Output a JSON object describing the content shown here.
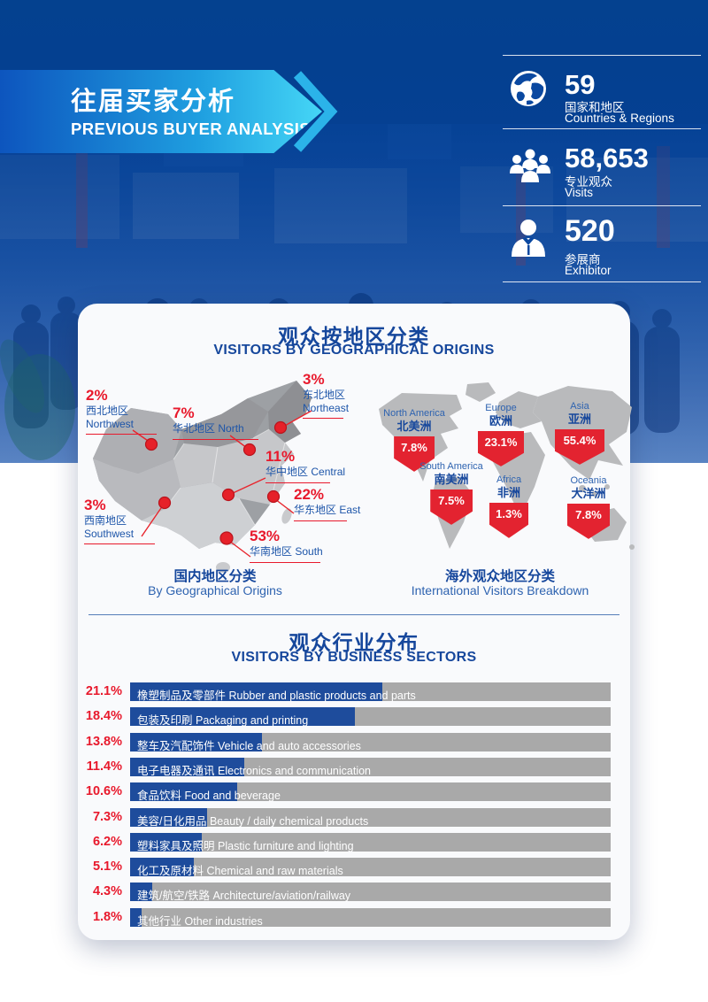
{
  "colors": {
    "header_blue": "#04418f",
    "brand_blue": "#16479c",
    "accent_red": "#e8192c",
    "badge_red": "#e32330",
    "bar_blue": "#1e4c9c",
    "bar_gray": "#a9a9a9",
    "banner_cyan": "#45d6f6"
  },
  "header": {
    "banner": {
      "title_zh": "往届买家分析",
      "title_en": "PREVIOUS BUYER ANALYSIS"
    },
    "stats": [
      {
        "icon": "globe-icon",
        "value": "59",
        "label_zh": "国家和地区",
        "label_en": "Countries & Regions"
      },
      {
        "icon": "visitors-icon",
        "value": "58,653",
        "label_zh": "专业观众",
        "label_en": "Visits"
      },
      {
        "icon": "exhibitor-icon",
        "value": "520",
        "label_zh": "参展商",
        "label_en": "Exhibitor"
      }
    ]
  },
  "geo_section": {
    "title_zh": "观众按地区分类",
    "title_en": "VISITORS BY GEOGRAPHICAL ORIGINS",
    "china": {
      "caption_zh": "国内地区分类",
      "caption_en": "By Geographical Origins",
      "regions": [
        {
          "pct": "2%",
          "zh": "西北地区",
          "en": "Northwest"
        },
        {
          "pct": "7%",
          "zh": "华北地区",
          "en": "North"
        },
        {
          "pct": "3%",
          "zh": "东北地区",
          "en": "Northeast"
        },
        {
          "pct": "11%",
          "zh": "华中地区",
          "en": "Central"
        },
        {
          "pct": "22%",
          "zh": "华东地区",
          "en": "East"
        },
        {
          "pct": "3%",
          "zh": "西南地区",
          "en": "Southwest"
        },
        {
          "pct": "53%",
          "zh": "华南地区",
          "en": "South"
        }
      ]
    },
    "world": {
      "caption_zh": "海外观众地区分类",
      "caption_en": "International Visitors Breakdown",
      "regions": [
        {
          "pct": "7.8%",
          "en": "North America",
          "zh": "北美洲"
        },
        {
          "pct": "23.1%",
          "en": "Europe",
          "zh": "欧洲"
        },
        {
          "pct": "55.4%",
          "en": "Asia",
          "zh": "亚洲"
        },
        {
          "pct": "7.5%",
          "en": "South America",
          "zh": "南美洲"
        },
        {
          "pct": "1.3%",
          "en": "Africa",
          "zh": "非洲"
        },
        {
          "pct": "7.8%",
          "en": "Oceania",
          "zh": "大洋洲"
        }
      ]
    }
  },
  "sectors_section": {
    "title_zh": "观众行业分布",
    "title_en": "VISITORS BY BUSINESS SECTORS",
    "rows": [
      {
        "pct": "21.1%",
        "zh": "橡塑制品及零部件",
        "en": "Rubber and plastic products and parts"
      },
      {
        "pct": "18.4%",
        "zh": "包装及印刷",
        "en": "Packaging and printing"
      },
      {
        "pct": "13.8%",
        "zh": "整车及汽配饰件",
        "en": "Vehicle and auto accessories"
      },
      {
        "pct": "11.4%",
        "zh": "电子电器及通讯",
        "en": "Electronics and communication"
      },
      {
        "pct": "10.6%",
        "zh": "食品饮料",
        "en": "Food and beverage"
      },
      {
        "pct": "7.3%",
        "zh": "美容/日化用品",
        "en": "Beauty / daily chemical products"
      },
      {
        "pct": "6.2%",
        "zh": "塑料家具及照明",
        "en": "Plastic furniture and lighting"
      },
      {
        "pct": "5.1%",
        "zh": "化工及原材料",
        "en": "Chemical and raw materials"
      },
      {
        "pct": "4.3%",
        "zh": "建筑/航空/铁路",
        "en": "Architecture/aviation/railway"
      },
      {
        "pct": "1.8%",
        "zh": "其他行业",
        "en": "Other industries"
      }
    ]
  },
  "chart_data": [
    {
      "type": "map-annotation",
      "title": "国内地区分类 By Geographical Origins",
      "categories": [
        "西北地区 Northwest",
        "华北地区 North",
        "东北地区 Northeast",
        "华中地区 Central",
        "华东地区 East",
        "西南地区 Southwest",
        "华南地区 South"
      ],
      "values": [
        2,
        7,
        3,
        11,
        22,
        3,
        53
      ],
      "unit": "percent"
    },
    {
      "type": "map-annotation",
      "title": "海外观众地区分类 International Visitors Breakdown",
      "categories": [
        "North America 北美洲",
        "Europe 欧洲",
        "Asia 亚洲",
        "South America 南美洲",
        "Africa 非洲",
        "Oceania 大洋洲"
      ],
      "values": [
        7.8,
        23.1,
        55.4,
        7.5,
        1.3,
        7.8
      ],
      "unit": "percent"
    },
    {
      "type": "bar",
      "orientation": "horizontal",
      "title": "观众行业分布 VISITORS BY BUSINESS SECTORS",
      "categories": [
        "橡塑制品及零部件 Rubber and plastic products and parts",
        "包装及印刷 Packaging and printing",
        "整车及汽配饰件 Vehicle and auto accessories",
        "电子电器及通讯 Electronics and communication",
        "食品饮料 Food and beverage",
        "美容/日化用品 Beauty / daily chemical products",
        "塑料家具及照明 Plastic furniture and lighting",
        "化工及原材料 Chemical and raw materials",
        "建筑/航空/铁路 Architecture/aviation/railway",
        "其他行业 Other industries"
      ],
      "values": [
        21.1,
        18.4,
        13.8,
        11.4,
        10.6,
        7.3,
        6.2,
        5.1,
        4.3,
        1.8
      ],
      "unit": "percent"
    }
  ]
}
